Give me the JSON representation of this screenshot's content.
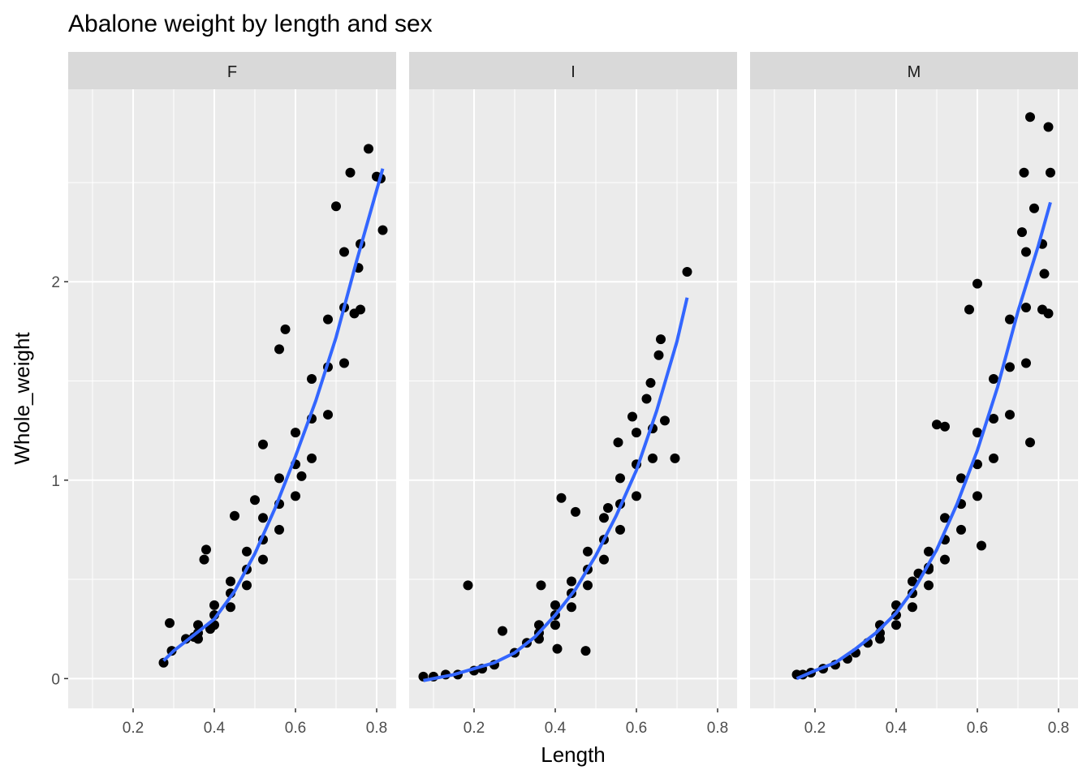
{
  "chart_data": {
    "type": "scatter",
    "title": "Abalone weight by length and sex",
    "xlabel": "Length",
    "ylabel": "Whole_weight",
    "xlim": [
      0.04,
      0.848
    ],
    "ylim": [
      -0.15,
      2.97
    ],
    "x_ticks": [
      "0.2",
      "0.4",
      "0.6",
      "0.8"
    ],
    "y_ticks": [
      "0",
      "1",
      "2"
    ],
    "grid": true,
    "colors": {
      "points": "#000000",
      "smooth": "#3366FF",
      "panel": "#EBEBEB",
      "strip": "#D9D9D9",
      "grid": "#FFFFFF"
    },
    "facets": [
      {
        "label": "F",
        "points": [
          [
            0.275,
            0.08
          ],
          [
            0.29,
            0.28
          ],
          [
            0.295,
            0.14
          ],
          [
            0.33,
            0.2
          ],
          [
            0.35,
            0.21
          ],
          [
            0.375,
            0.6
          ],
          [
            0.38,
            0.65
          ],
          [
            0.39,
            0.25
          ],
          [
            0.45,
            0.82
          ],
          [
            0.5,
            0.9
          ],
          [
            0.52,
            1.18
          ],
          [
            0.56,
            1.66
          ],
          [
            0.575,
            1.76
          ],
          [
            0.615,
            1.02
          ],
          [
            0.7,
            2.38
          ],
          [
            0.735,
            2.55
          ],
          [
            0.745,
            1.84
          ],
          [
            0.755,
            2.07
          ],
          [
            0.78,
            2.67
          ],
          [
            0.8,
            2.53
          ],
          [
            0.81,
            2.52
          ],
          [
            0.815,
            2.26
          ],
          [
            0.36,
            0.2
          ],
          [
            0.36,
            0.23
          ],
          [
            0.36,
            0.27
          ],
          [
            0.4,
            0.27
          ],
          [
            0.4,
            0.32
          ],
          [
            0.4,
            0.37
          ],
          [
            0.44,
            0.36
          ],
          [
            0.44,
            0.43
          ],
          [
            0.44,
            0.49
          ],
          [
            0.48,
            0.47
          ],
          [
            0.48,
            0.55
          ],
          [
            0.48,
            0.64
          ],
          [
            0.52,
            0.6
          ],
          [
            0.52,
            0.7
          ],
          [
            0.52,
            0.81
          ],
          [
            0.56,
            0.75
          ],
          [
            0.56,
            0.88
          ],
          [
            0.56,
            1.01
          ],
          [
            0.6,
            0.92
          ],
          [
            0.6,
            1.08
          ],
          [
            0.6,
            1.24
          ],
          [
            0.64,
            1.11
          ],
          [
            0.64,
            1.31
          ],
          [
            0.64,
            1.51
          ],
          [
            0.68,
            1.33
          ],
          [
            0.68,
            1.57
          ],
          [
            0.68,
            1.81
          ],
          [
            0.72,
            1.59
          ],
          [
            0.72,
            1.87
          ],
          [
            0.72,
            2.15
          ],
          [
            0.76,
            1.86
          ],
          [
            0.76,
            2.19
          ]
        ],
        "smooth": [
          [
            0.275,
            0.09
          ],
          [
            0.3,
            0.14
          ],
          [
            0.35,
            0.22
          ],
          [
            0.4,
            0.3
          ],
          [
            0.45,
            0.44
          ],
          [
            0.5,
            0.63
          ],
          [
            0.55,
            0.86
          ],
          [
            0.6,
            1.12
          ],
          [
            0.65,
            1.4
          ],
          [
            0.7,
            1.72
          ],
          [
            0.75,
            2.1
          ],
          [
            0.815,
            2.57
          ]
        ]
      },
      {
        "label": "I",
        "points": [
          [
            0.075,
            0.01
          ],
          [
            0.1,
            0.01
          ],
          [
            0.13,
            0.02
          ],
          [
            0.16,
            0.02
          ],
          [
            0.185,
            0.47
          ],
          [
            0.2,
            0.04
          ],
          [
            0.22,
            0.05
          ],
          [
            0.25,
            0.07
          ],
          [
            0.27,
            0.24
          ],
          [
            0.3,
            0.13
          ],
          [
            0.33,
            0.18
          ],
          [
            0.365,
            0.47
          ],
          [
            0.405,
            0.15
          ],
          [
            0.415,
            0.91
          ],
          [
            0.45,
            0.84
          ],
          [
            0.475,
            0.14
          ],
          [
            0.53,
            0.86
          ],
          [
            0.555,
            1.19
          ],
          [
            0.59,
            1.32
          ],
          [
            0.625,
            1.41
          ],
          [
            0.635,
            1.49
          ],
          [
            0.655,
            1.63
          ],
          [
            0.66,
            1.71
          ],
          [
            0.695,
            1.11
          ],
          [
            0.725,
            2.05
          ],
          [
            0.36,
            0.2
          ],
          [
            0.36,
            0.23
          ],
          [
            0.36,
            0.27
          ],
          [
            0.4,
            0.27
          ],
          [
            0.4,
            0.32
          ],
          [
            0.4,
            0.37
          ],
          [
            0.44,
            0.36
          ],
          [
            0.44,
            0.43
          ],
          [
            0.44,
            0.49
          ],
          [
            0.48,
            0.47
          ],
          [
            0.48,
            0.55
          ],
          [
            0.48,
            0.64
          ],
          [
            0.52,
            0.6
          ],
          [
            0.52,
            0.7
          ],
          [
            0.52,
            0.81
          ],
          [
            0.56,
            0.75
          ],
          [
            0.56,
            0.88
          ],
          [
            0.56,
            1.01
          ],
          [
            0.6,
            0.92
          ],
          [
            0.6,
            1.08
          ],
          [
            0.6,
            1.24
          ],
          [
            0.64,
            1.11
          ],
          [
            0.64,
            1.26
          ],
          [
            0.67,
            1.3
          ]
        ],
        "smooth": [
          [
            0.075,
            -0.01
          ],
          [
            0.15,
            0.02
          ],
          [
            0.2,
            0.05
          ],
          [
            0.25,
            0.08
          ],
          [
            0.3,
            0.13
          ],
          [
            0.35,
            0.21
          ],
          [
            0.4,
            0.32
          ],
          [
            0.45,
            0.45
          ],
          [
            0.5,
            0.62
          ],
          [
            0.55,
            0.82
          ],
          [
            0.6,
            1.05
          ],
          [
            0.65,
            1.35
          ],
          [
            0.7,
            1.7
          ],
          [
            0.725,
            1.92
          ]
        ]
      },
      {
        "label": "M",
        "points": [
          [
            0.155,
            0.02
          ],
          [
            0.17,
            0.02
          ],
          [
            0.19,
            0.03
          ],
          [
            0.22,
            0.05
          ],
          [
            0.25,
            0.07
          ],
          [
            0.28,
            0.1
          ],
          [
            0.3,
            0.13
          ],
          [
            0.33,
            0.18
          ],
          [
            0.455,
            0.53
          ],
          [
            0.48,
            0.56
          ],
          [
            0.5,
            1.28
          ],
          [
            0.52,
            1.27
          ],
          [
            0.58,
            1.86
          ],
          [
            0.6,
            1.99
          ],
          [
            0.61,
            0.67
          ],
          [
            0.71,
            2.25
          ],
          [
            0.715,
            2.55
          ],
          [
            0.73,
            1.19
          ],
          [
            0.73,
            2.83
          ],
          [
            0.74,
            2.37
          ],
          [
            0.765,
            2.04
          ],
          [
            0.775,
            1.84
          ],
          [
            0.775,
            2.78
          ],
          [
            0.78,
            2.55
          ],
          [
            0.36,
            0.2
          ],
          [
            0.36,
            0.23
          ],
          [
            0.36,
            0.27
          ],
          [
            0.4,
            0.27
          ],
          [
            0.4,
            0.32
          ],
          [
            0.4,
            0.37
          ],
          [
            0.44,
            0.36
          ],
          [
            0.44,
            0.43
          ],
          [
            0.44,
            0.49
          ],
          [
            0.48,
            0.47
          ],
          [
            0.48,
            0.55
          ],
          [
            0.48,
            0.64
          ],
          [
            0.52,
            0.6
          ],
          [
            0.52,
            0.7
          ],
          [
            0.52,
            0.81
          ],
          [
            0.56,
            0.75
          ],
          [
            0.56,
            0.88
          ],
          [
            0.56,
            1.01
          ],
          [
            0.6,
            0.92
          ],
          [
            0.6,
            1.08
          ],
          [
            0.6,
            1.24
          ],
          [
            0.64,
            1.11
          ],
          [
            0.64,
            1.31
          ],
          [
            0.64,
            1.51
          ],
          [
            0.68,
            1.33
          ],
          [
            0.68,
            1.57
          ],
          [
            0.68,
            1.81
          ],
          [
            0.72,
            1.59
          ],
          [
            0.72,
            1.87
          ],
          [
            0.72,
            2.15
          ],
          [
            0.76,
            1.86
          ],
          [
            0.76,
            2.19
          ]
        ],
        "smooth": [
          [
            0.155,
            0.0
          ],
          [
            0.2,
            0.04
          ],
          [
            0.25,
            0.08
          ],
          [
            0.3,
            0.15
          ],
          [
            0.35,
            0.23
          ],
          [
            0.4,
            0.33
          ],
          [
            0.45,
            0.47
          ],
          [
            0.5,
            0.65
          ],
          [
            0.55,
            0.88
          ],
          [
            0.6,
            1.15
          ],
          [
            0.65,
            1.47
          ],
          [
            0.7,
            1.85
          ],
          [
            0.75,
            2.18
          ],
          [
            0.78,
            2.4
          ]
        ]
      }
    ]
  }
}
